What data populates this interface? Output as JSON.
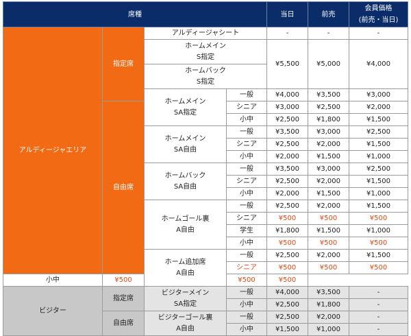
{
  "header": {
    "seat_type": "席種",
    "day_of": "当日",
    "advance": "前売",
    "member_line1": "会員価格",
    "member_line2": "(前売・当日)"
  },
  "zones": {
    "home": "アルディージャエリア",
    "visitor": "ビジター"
  },
  "sections": {
    "reserved": "指定席",
    "free": "自由席"
  },
  "tiers": {
    "general": "一般",
    "senior": "シニア",
    "student": "学生",
    "child": "小中"
  },
  "seats": {
    "ardija_seat": "アルディージャシート",
    "home_main_s_1": "ホームメイン",
    "home_main_s_2": "S指定",
    "home_back_s_1": "ホームバック",
    "home_back_s_2": "S指定",
    "home_main_sa_1": "ホームメイン",
    "home_main_sa_2": "SA指定",
    "home_main_saf_1": "ホームメイン",
    "home_main_saf_2": "SA自由",
    "home_back_saf_1": "ホームバック",
    "home_back_saf_2": "SA自由",
    "home_goal_1": "ホームゴール裏",
    "home_goal_2": "A自由",
    "home_extra_1": "ホーム追加席",
    "home_extra_2": "A自由",
    "visitor_main_1": "ビジターメイン",
    "visitor_main_2": "SA指定",
    "visitor_goal_1": "ビジターゴール裏",
    "visitor_goal_2": "A自由"
  },
  "prices": {
    "dash": "-",
    "ardija": {
      "day": "-",
      "adv": "-",
      "mem": "-"
    },
    "home_s": {
      "day": "¥5,500",
      "adv": "¥5,000",
      "mem": "¥4,000"
    },
    "main_sa": {
      "general": {
        "day": "¥4,000",
        "adv": "¥3,500",
        "mem": "¥3,000"
      },
      "senior": {
        "day": "¥3,000",
        "adv": "¥2,500",
        "mem": "¥2,000"
      },
      "child": {
        "day": "¥2,500",
        "adv": "¥1,800",
        "mem": "¥1,500"
      }
    },
    "main_saf": {
      "general": {
        "day": "¥3,500",
        "adv": "¥3,000",
        "mem": "¥2,500"
      },
      "senior": {
        "day": "¥2,500",
        "adv": "¥2,000",
        "mem": "¥1,500"
      },
      "child": {
        "day": "¥2,000",
        "adv": "¥1,500",
        "mem": "¥1,000"
      }
    },
    "back_saf": {
      "general": {
        "day": "¥3,500",
        "adv": "¥3,000",
        "mem": "¥2,500"
      },
      "senior": {
        "day": "¥2,500",
        "adv": "¥2,000",
        "mem": "¥1,500"
      },
      "child": {
        "day": "¥2,000",
        "adv": "¥1,500",
        "mem": "¥1,000"
      }
    },
    "goal": {
      "general": {
        "day": "¥2,500",
        "adv": "¥2,000",
        "mem": "¥1,500"
      },
      "senior": {
        "day": "¥500",
        "adv": "¥500",
        "mem": "¥500"
      },
      "student": {
        "day": "¥1,800",
        "adv": "¥1,500",
        "mem": "¥1,000"
      },
      "child": {
        "day": "¥500",
        "adv": "¥500",
        "mem": "¥500"
      }
    },
    "extra": {
      "general": {
        "day": "¥2,500",
        "adv": "¥2,000",
        "mem": "¥1,500"
      },
      "senior": {
        "day": "¥500",
        "adv": "¥500",
        "mem": "¥500"
      },
      "child": {
        "day": "¥500",
        "adv": "¥500",
        "mem": "¥500"
      }
    },
    "vis_main": {
      "general": {
        "day": "¥4,000",
        "adv": "¥3,500",
        "mem": "-"
      },
      "child": {
        "day": "¥2,500",
        "adv": "¥1,800",
        "mem": "-"
      }
    },
    "vis_goal": {
      "general": {
        "day": "¥2,500",
        "adv": "¥2,000",
        "mem": "-"
      },
      "child": {
        "day": "¥1,500",
        "adv": "¥1,000",
        "mem": "-"
      }
    }
  },
  "colors": {
    "header_bg": "#0a2d6a",
    "home_zone": "#f26a14",
    "visitor_zone": "#c8c8c8",
    "highlight_price": "#e0490f"
  }
}
